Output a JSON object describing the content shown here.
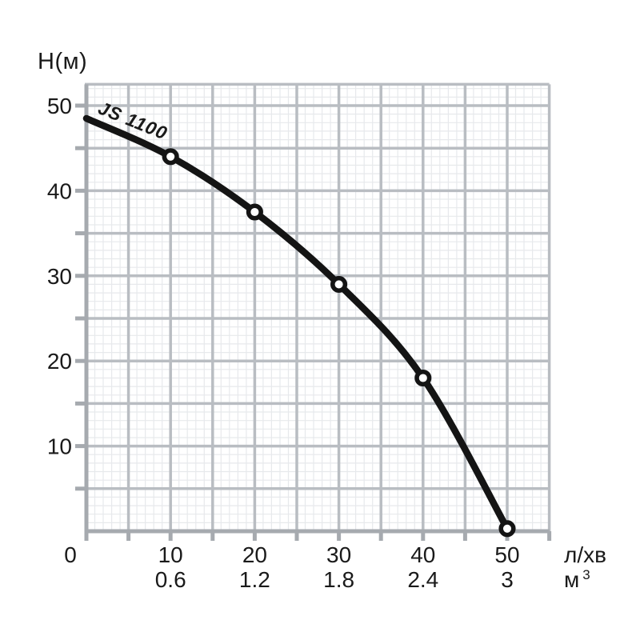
{
  "page": {
    "background": "#ffffff"
  },
  "chart_data": {
    "type": "line",
    "title": "JS 1100",
    "ylabel": "Н(м)",
    "origin_label": "0",
    "x_axis": {
      "unit_primary": "л/хв",
      "unit_secondary_base": "м",
      "unit_secondary_sup": "3",
      "ticks": [
        10,
        20,
        30,
        40,
        50
      ],
      "ticks_secondary": [
        "0.6",
        "1.2",
        "1.8",
        "2.4",
        "3"
      ]
    },
    "y_axis": {
      "ticks": [
        10,
        20,
        30,
        40,
        50
      ]
    },
    "xlim": [
      0,
      55
    ],
    "ylim": [
      0,
      52.5
    ],
    "grid": {
      "minor_step": 1,
      "major_step": 5
    },
    "series": [
      {
        "name": "JS 1100",
        "x": [
          0,
          10,
          20,
          30,
          40,
          50
        ],
        "y": [
          48.5,
          44,
          37.5,
          29,
          18,
          0.3
        ],
        "markers_from_index": 1
      }
    ],
    "colors": {
      "curve": "#141414",
      "grid_major": "#b9bdc2",
      "grid_minor": "#e7e9ec",
      "axis": "#a6aaaf",
      "text": "#1a1a1a",
      "marker_fill": "#ffffff"
    }
  }
}
